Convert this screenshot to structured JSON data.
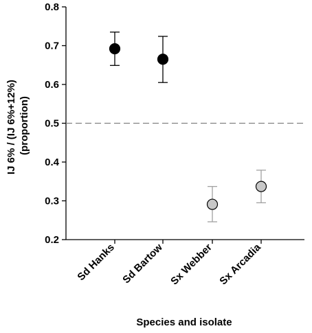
{
  "chart_data": {
    "type": "scatter",
    "title": "",
    "xlabel": "Species and isolate",
    "ylabel_lines": [
      "IJ 6% / (IJ 6%+12%)",
      "(proportion)"
    ],
    "categories": [
      "Sd Hanks",
      "Sd Bartow",
      "Sx Webber",
      "Sx Arcadia"
    ],
    "values": [
      0.692,
      0.665,
      0.291,
      0.337
    ],
    "error_upper": [
      0.735,
      0.724,
      0.337,
      0.379
    ],
    "error_lower": [
      0.649,
      0.605,
      0.246,
      0.295
    ],
    "point_colors": [
      "#000000",
      "#000000",
      "#c8c8c8",
      "#c8c8c8"
    ],
    "error_bar_colors": [
      "#000000",
      "#000000",
      "#a0a0a0",
      "#a0a0a0"
    ],
    "ylim": [
      0.2,
      0.8
    ],
    "yticks": [
      0.2,
      0.3,
      0.4,
      0.5,
      0.6,
      0.7,
      0.8
    ],
    "ytick_labels": [
      "0.2",
      "0.3",
      "0.4",
      "0.5",
      "0.6",
      "0.7",
      "0.8"
    ],
    "reference_line": {
      "y": 0.5,
      "style": "dashed",
      "color": "#808080"
    },
    "grid": false,
    "legend": "none"
  }
}
